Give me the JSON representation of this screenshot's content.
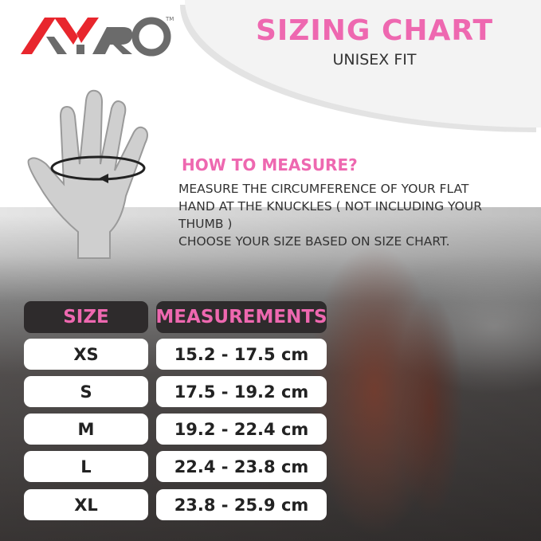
{
  "brand": {
    "logo_text": "AYRO",
    "trademark": "TM",
    "colors": {
      "red": "#e8262d",
      "gray": "#6b6b6b"
    }
  },
  "header": {
    "title": "SIZING CHART",
    "subtitle": "UNISEX FIT"
  },
  "accent_color": "#ee68b0",
  "how_to": {
    "heading": "HOW TO MEASURE?",
    "lines": [
      "MEASURE THE CIRCUMFERENCE OF YOUR FLAT",
      "HAND AT THE KNUCKLES ( NOT INCLUDING YOUR",
      "THUMB )",
      "CHOOSE YOUR SIZE BASED ON SIZE CHART."
    ]
  },
  "table": {
    "headers": [
      "SIZE",
      "MEASUREMENTS"
    ],
    "rows": [
      {
        "size": "XS",
        "measurement": "15.2 - 17.5 cm"
      },
      {
        "size": "S",
        "measurement": "17.5 - 19.2 cm"
      },
      {
        "size": "M",
        "measurement": "19.2 - 22.4 cm"
      },
      {
        "size": "L",
        "measurement": "22.4 - 23.8 cm"
      },
      {
        "size": "XL",
        "measurement": "23.8 - 25.9 cm"
      }
    ]
  }
}
